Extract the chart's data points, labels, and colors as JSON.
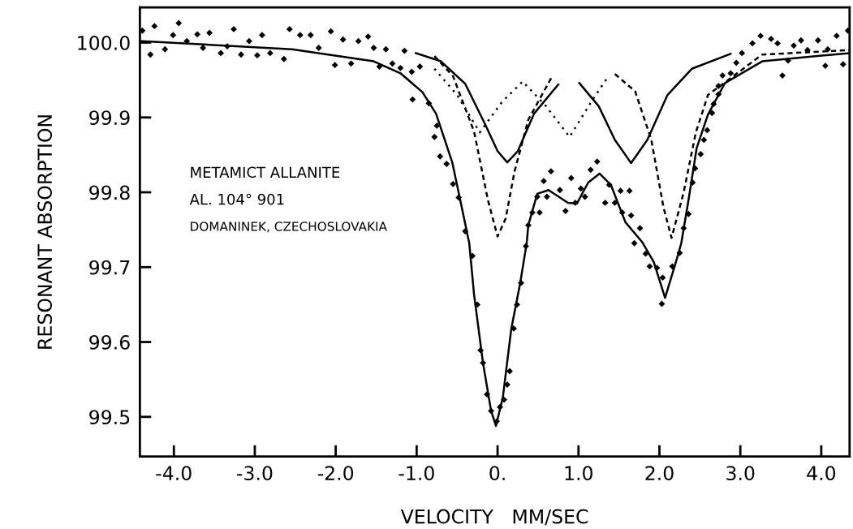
{
  "chart_data": {
    "type": "line",
    "xlabel": "VELOCITY   MM/SEC",
    "ylabel": "RESONANT ABSORPTION",
    "annotations": [
      "METAMICT ALLANITE",
      "AL. 104° 901",
      "DOMANINEK, CZECHOSLOVAKIA"
    ],
    "xlim": [
      -4.42,
      4.35
    ],
    "ylim": [
      99.447,
      100.047
    ],
    "xticks": [
      {
        "value": -4,
        "label": "-4.0"
      },
      {
        "value": -3,
        "label": "-3.0"
      },
      {
        "value": -2,
        "label": "-2.0"
      },
      {
        "value": -1,
        "label": "-1.0"
      },
      {
        "value": 0,
        "label": "0."
      },
      {
        "value": 1,
        "label": "1.0"
      },
      {
        "value": 2,
        "label": "2.0"
      },
      {
        "value": 3,
        "label": "3.0"
      },
      {
        "value": 4,
        "label": "4.0"
      }
    ],
    "yticks": [
      {
        "value": 99.5,
        "label": "99.5"
      },
      {
        "value": 99.6,
        "label": "99.6"
      },
      {
        "value": 99.7,
        "label": "99.7"
      },
      {
        "value": 99.8,
        "label": "99.8"
      },
      {
        "value": 99.9,
        "label": "99.9"
      },
      {
        "value": 100,
        "label": "100.0"
      }
    ],
    "grid": false,
    "series": [
      {
        "line_style": "solid",
        "color": "#000000",
        "x": [
          -4.42,
          -4.39,
          -2.54,
          -1.53,
          -1.2,
          -0.93,
          -0.76,
          -0.56,
          -0.46,
          -0.35,
          -0.29,
          -0.18,
          -0.08,
          -0.02,
          0.065,
          0.17,
          0.28,
          0.36,
          0.38,
          0.49,
          0.63,
          0.87,
          0.98,
          1.12,
          1.26,
          1.4,
          1.58,
          1.79,
          1.93,
          2.07,
          2.21,
          2.27,
          2.36,
          2.46,
          2.6,
          2.81,
          3.27,
          4.35
        ],
        "values": [
          100.002,
          100.002,
          99.991,
          99.975,
          99.959,
          99.934,
          99.905,
          99.84,
          99.789,
          99.732,
          99.663,
          99.572,
          99.508,
          99.488,
          99.526,
          99.618,
          99.679,
          99.732,
          99.756,
          99.798,
          99.803,
          99.786,
          99.785,
          99.813,
          99.825,
          99.81,
          99.76,
          99.733,
          99.707,
          99.659,
          99.709,
          99.732,
          99.79,
          99.859,
          99.904,
          99.946,
          99.975,
          99.986
        ]
      },
      {
        "line_style": "solid",
        "color": "#000000",
        "x": [
          -1.01,
          -0.7,
          -0.4,
          -0.15,
          0.0,
          0.12,
          0.25,
          0.45,
          0.75
        ],
        "values": [
          99.986,
          99.975,
          99.945,
          99.89,
          99.855,
          99.84,
          99.855,
          99.905,
          99.944
        ]
      },
      {
        "line_style": "solid",
        "color": "#000000",
        "x": [
          1.01,
          1.25,
          1.45,
          1.65,
          1.85,
          2.1,
          2.4,
          2.88
        ],
        "values": [
          99.946,
          99.915,
          99.87,
          99.839,
          99.87,
          99.93,
          99.965,
          99.985
        ]
      },
      {
        "line_style": "dashed",
        "color": "#000000",
        "x": [
          -0.78,
          -0.55,
          -0.29,
          -0.12,
          0.0,
          0.1,
          0.21,
          0.38,
          0.68
        ],
        "values": [
          99.982,
          99.955,
          99.881,
          99.79,
          99.741,
          99.765,
          99.828,
          99.897,
          99.956
        ]
      },
      {
        "line_style": "dashed",
        "color": "#000000",
        "x": [
          1.45,
          1.7,
          1.9,
          2.05,
          2.15,
          2.3,
          2.45,
          2.6,
          3.27,
          4.35
        ],
        "values": [
          99.958,
          99.935,
          99.87,
          99.78,
          99.739,
          99.8,
          99.88,
          99.93,
          99.984,
          99.99
        ]
      },
      {
        "line_style": "dotted",
        "color": "#000000",
        "x": [
          -0.78,
          -0.5,
          -0.22,
          0.05,
          0.31,
          0.6,
          0.89,
          1.17,
          1.35
        ],
        "values": [
          99.965,
          99.93,
          99.88,
          99.92,
          99.948,
          99.915,
          99.874,
          99.923,
          99.952
        ]
      },
      {
        "type": "scatter",
        "marker": "diamond",
        "color": "#000000",
        "x": [
          -4.39,
          -4.24,
          -4.29,
          -4.11,
          -3.94,
          -4.01,
          -3.84,
          -3.71,
          -3.64,
          -3.56,
          -3.42,
          -3.34,
          -3.26,
          -3.17,
          -3.07,
          -2.97,
          -2.91,
          -2.81,
          -2.64,
          -2.57,
          -2.44,
          -2.31,
          -2.21,
          -2.06,
          -2.01,
          -1.91,
          -1.81,
          -1.72,
          -1.6,
          -1.53,
          -1.46,
          -1.38,
          -1.3,
          -1.15,
          -1.2,
          -1.06,
          -1.05,
          -0.96,
          -0.85,
          -0.78,
          -0.75,
          -0.71,
          -0.63,
          -0.55,
          -0.48,
          -0.4,
          -0.31,
          -0.25,
          -0.21,
          -0.18,
          -0.13,
          -0.08,
          -0.01,
          0.03,
          0.08,
          0.12,
          0.15,
          0.2,
          0.24,
          0.29,
          0.35,
          0.38,
          0.43,
          0.49,
          0.52,
          0.57,
          0.61,
          0.66,
          0.77,
          0.84,
          0.91,
          0.96,
          1.03,
          1.08,
          1.15,
          1.23,
          1.33,
          1.38,
          1.45,
          1.52,
          1.63,
          1.54,
          1.65,
          1.69,
          1.76,
          1.83,
          1.88,
          1.97,
          2.04,
          2.03,
          2.16,
          2.25,
          2.3,
          2.36,
          2.41,
          2.44,
          2.51,
          2.55,
          2.59,
          2.65,
          2.67,
          2.73,
          2.73,
          2.78,
          2.88,
          2.95,
          3.02,
          3.15,
          3.25,
          3.38,
          3.46,
          3.52,
          3.59,
          3.66,
          3.75,
          3.83,
          3.96,
          4.05,
          4.08,
          4.19,
          4.27,
          4.33
        ],
        "values": [
          100.016,
          100.022,
          99.984,
          99.991,
          100.026,
          100.01,
          100.002,
          100.011,
          99.993,
          100.013,
          99.986,
          99.995,
          100.018,
          99.984,
          100.002,
          99.983,
          100.01,
          99.986,
          99.978,
          100.018,
          100.01,
          100.01,
          99.993,
          100.015,
          99.97,
          100.004,
          99.972,
          100.002,
          100.008,
          99.993,
          99.968,
          99.991,
          99.972,
          99.989,
          99.966,
          99.961,
          99.924,
          99.968,
          99.919,
          99.874,
          99.889,
          99.848,
          99.838,
          99.811,
          99.793,
          99.748,
          99.715,
          99.65,
          99.589,
          99.572,
          99.53,
          99.508,
          99.494,
          99.513,
          99.523,
          99.543,
          99.561,
          99.618,
          99.65,
          99.679,
          99.728,
          99.756,
          99.773,
          99.794,
          99.773,
          99.815,
          99.794,
          99.828,
          99.803,
          99.775,
          99.819,
          99.786,
          99.805,
          99.794,
          99.83,
          99.841,
          99.786,
          99.81,
          99.786,
          99.802,
          99.802,
          99.773,
          99.769,
          99.732,
          99.752,
          99.718,
          99.701,
          99.699,
          99.686,
          99.651,
          99.701,
          99.719,
          99.752,
          99.771,
          99.813,
          99.832,
          99.851,
          99.87,
          99.883,
          99.906,
          99.918,
          99.931,
          99.942,
          99.956,
          99.959,
          99.973,
          99.986,
          99.999,
          100.009,
          100.005,
          99.999,
          99.956,
          99.976,
          99.996,
          100.003,
          99.99,
          100.003,
          99.969,
          99.991,
          100.009,
          99.971,
          100.016
        ]
      }
    ]
  }
}
